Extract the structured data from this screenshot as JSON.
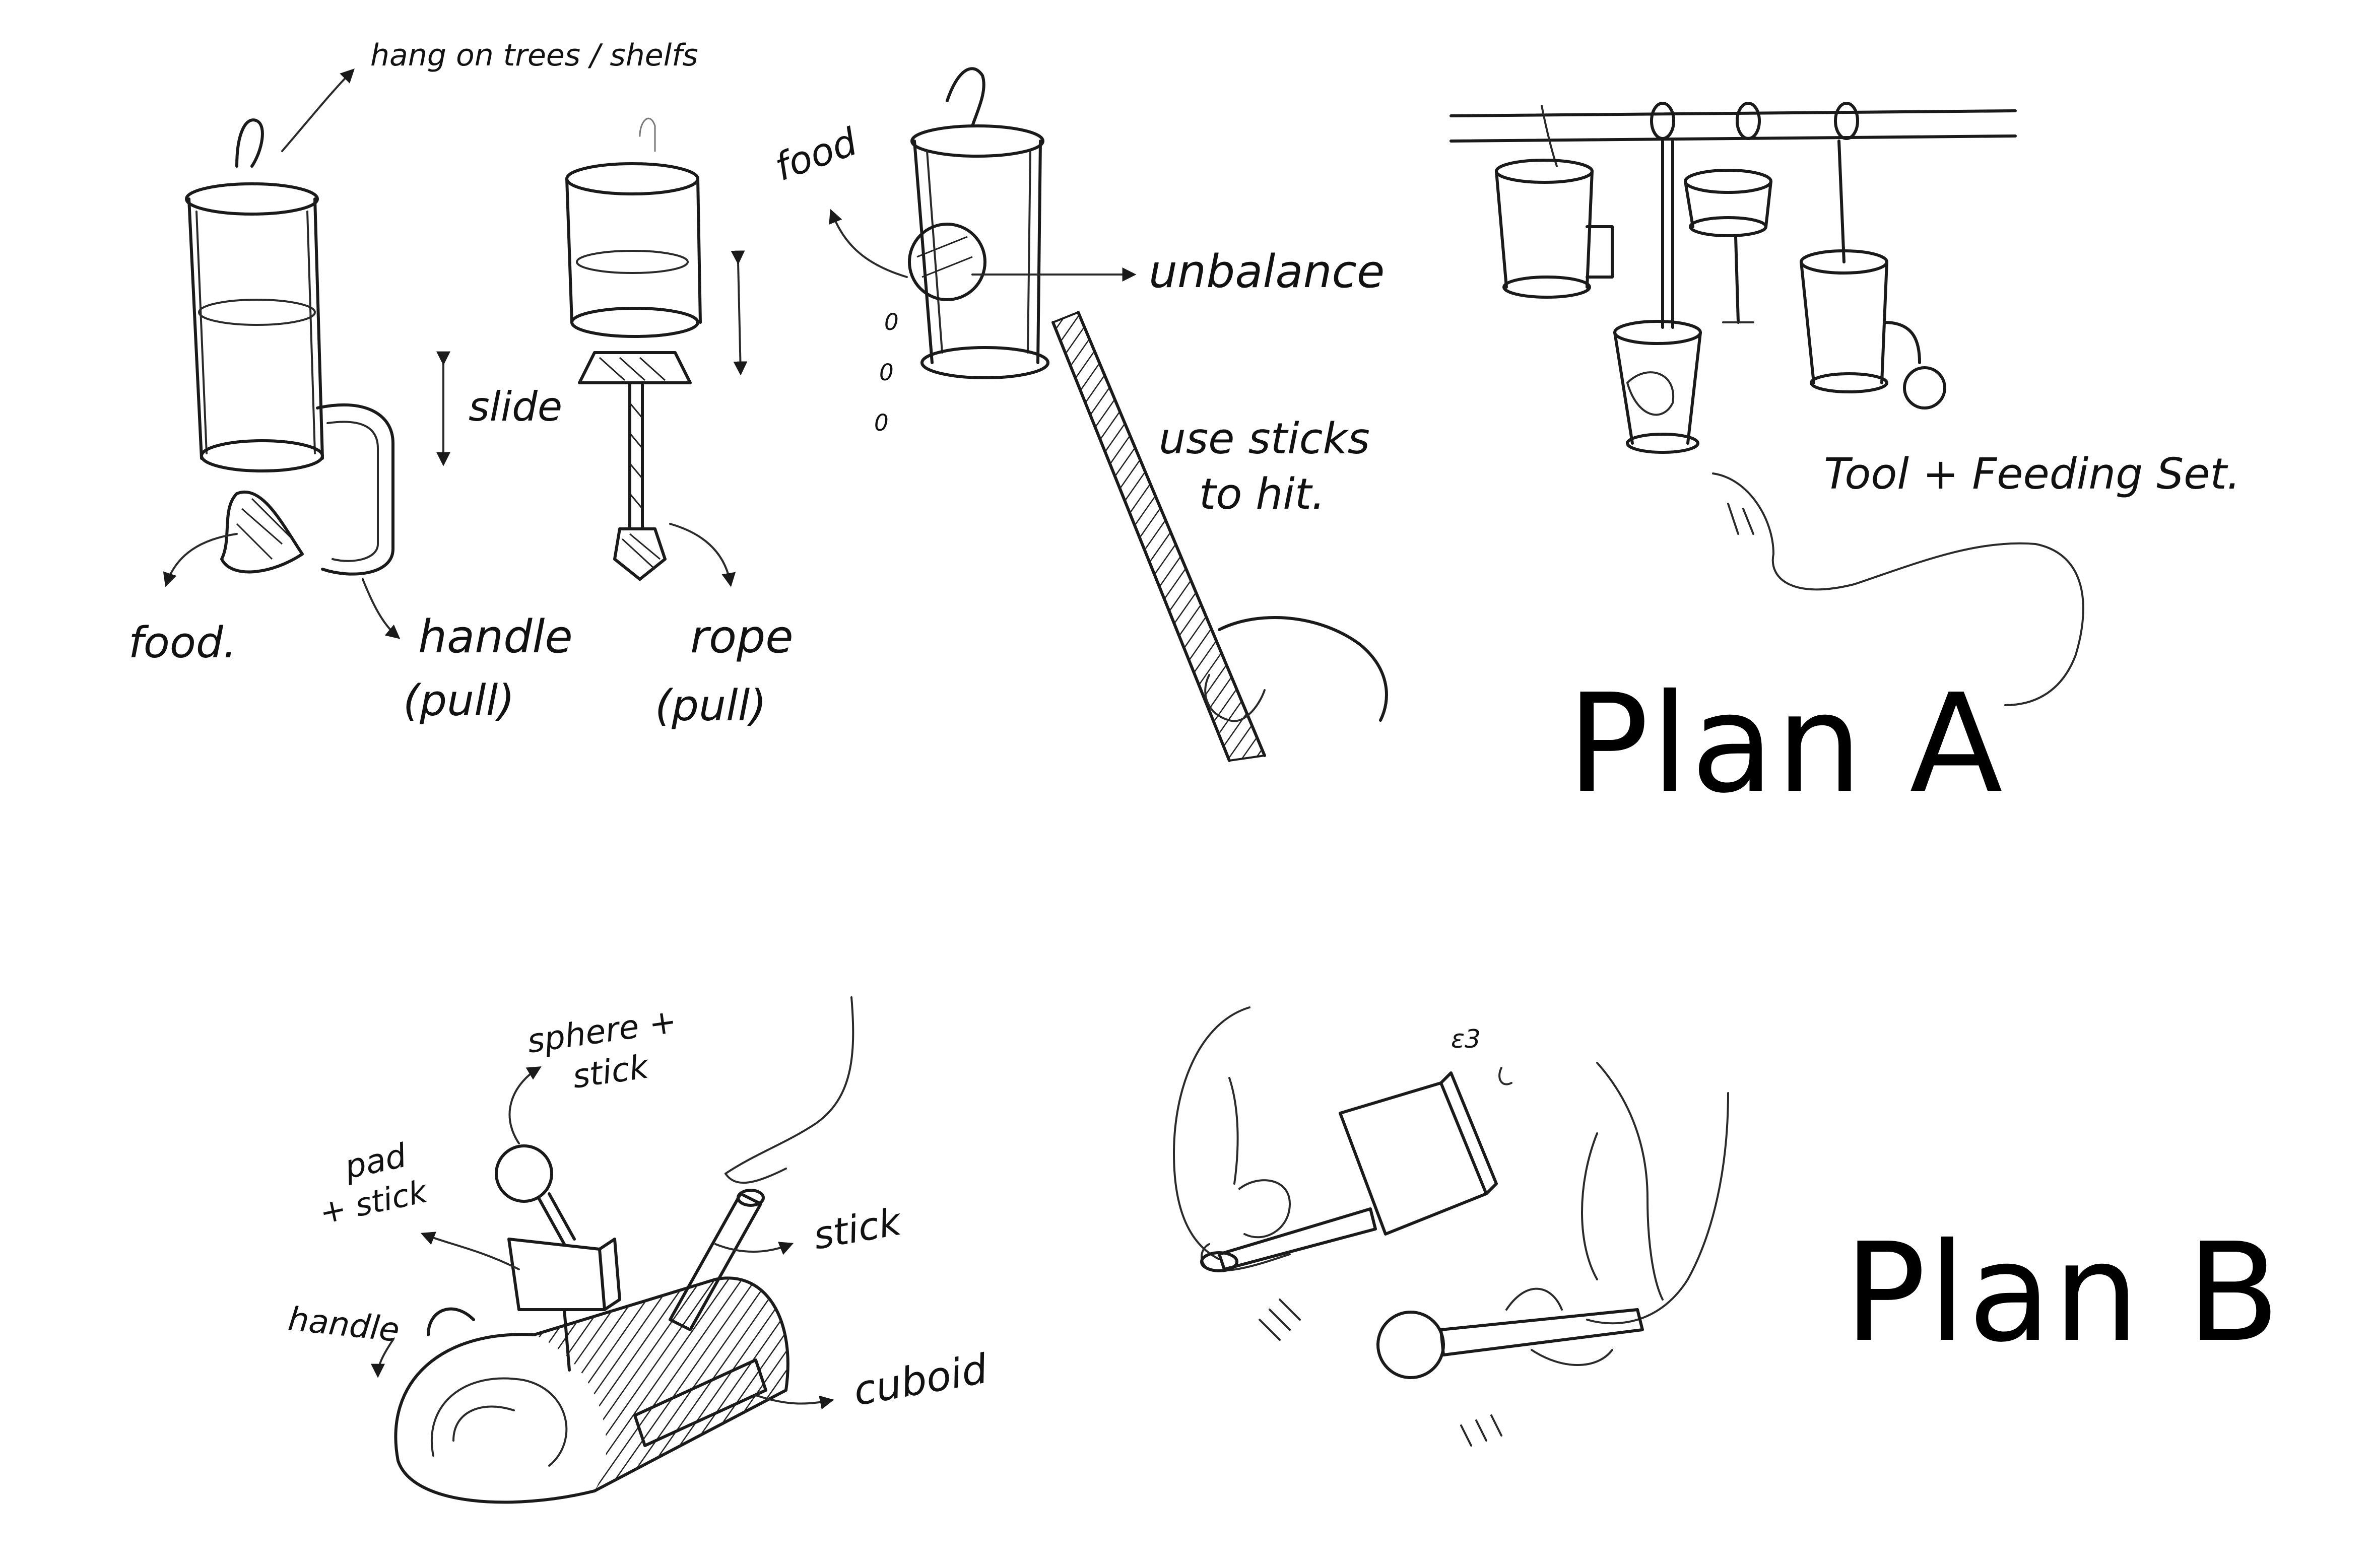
{
  "plan_a": {
    "title": "Plan A",
    "labels": {
      "hang": "hang on trees / shelfs",
      "slide": "slide",
      "food_left": "food.",
      "handle": "handle",
      "handle_pull": "(pull)",
      "rope": "rope",
      "rope_pull": "(pull)",
      "food_top": "food",
      "unbalance": "unbalance",
      "use_sticks": "use sticks",
      "to_hit": "to hit.",
      "tool_set": "Tool + Feeding Set."
    }
  },
  "plan_b": {
    "title": "Plan B",
    "labels": {
      "sphere": "sphere +",
      "sphere_stick": "stick",
      "pad": "pad",
      "pad_stick": "+ stick",
      "stick": "stick",
      "handle": "handle",
      "cuboid": "cuboid"
    }
  }
}
